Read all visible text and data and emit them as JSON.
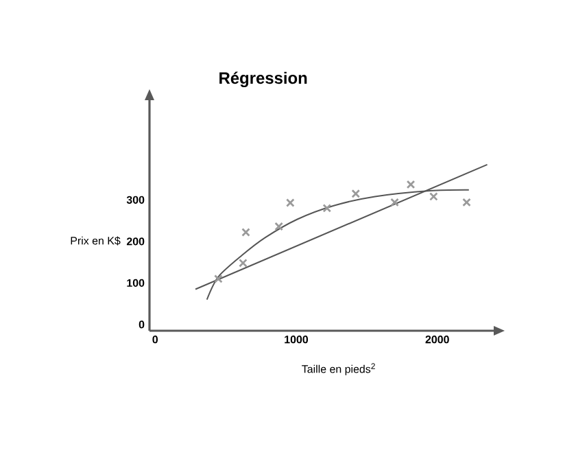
{
  "chart_data": {
    "type": "scatter",
    "title": "Régression",
    "xlabel": "Taille en pieds$^{2}$",
    "ylabel": "Prix en K$",
    "xlim": [
      -40,
      2400
    ],
    "ylim": [
      -15,
      540
    ],
    "xticks": [
      0,
      1000,
      2000
    ],
    "yticks": [
      0,
      100,
      200,
      300
    ],
    "series": [
      {
        "marker": "cross",
        "color": "#9a9a9a",
        "x": [
          448,
          623,
          643,
          877,
          958,
          1218,
          1422,
          1698,
          1812,
          1974,
          2208
        ],
        "values": [
          110,
          148,
          222,
          236,
          293,
          280,
          315,
          294,
          337,
          308,
          294
        ]
      },
      {
        "type": "line",
        "color": "#555555",
        "x": [
          286,
          2354
        ],
        "values": [
          85,
          385
        ]
      },
      {
        "type": "line",
        "color": "#555555",
        "x": [
          367,
          448,
          617,
          779,
          1006,
          1266,
          1558,
          1948,
          2224
        ],
        "values": [
          60,
          115,
          167,
          209,
          253,
          286,
          308,
          322,
          324
        ]
      }
    ]
  }
}
